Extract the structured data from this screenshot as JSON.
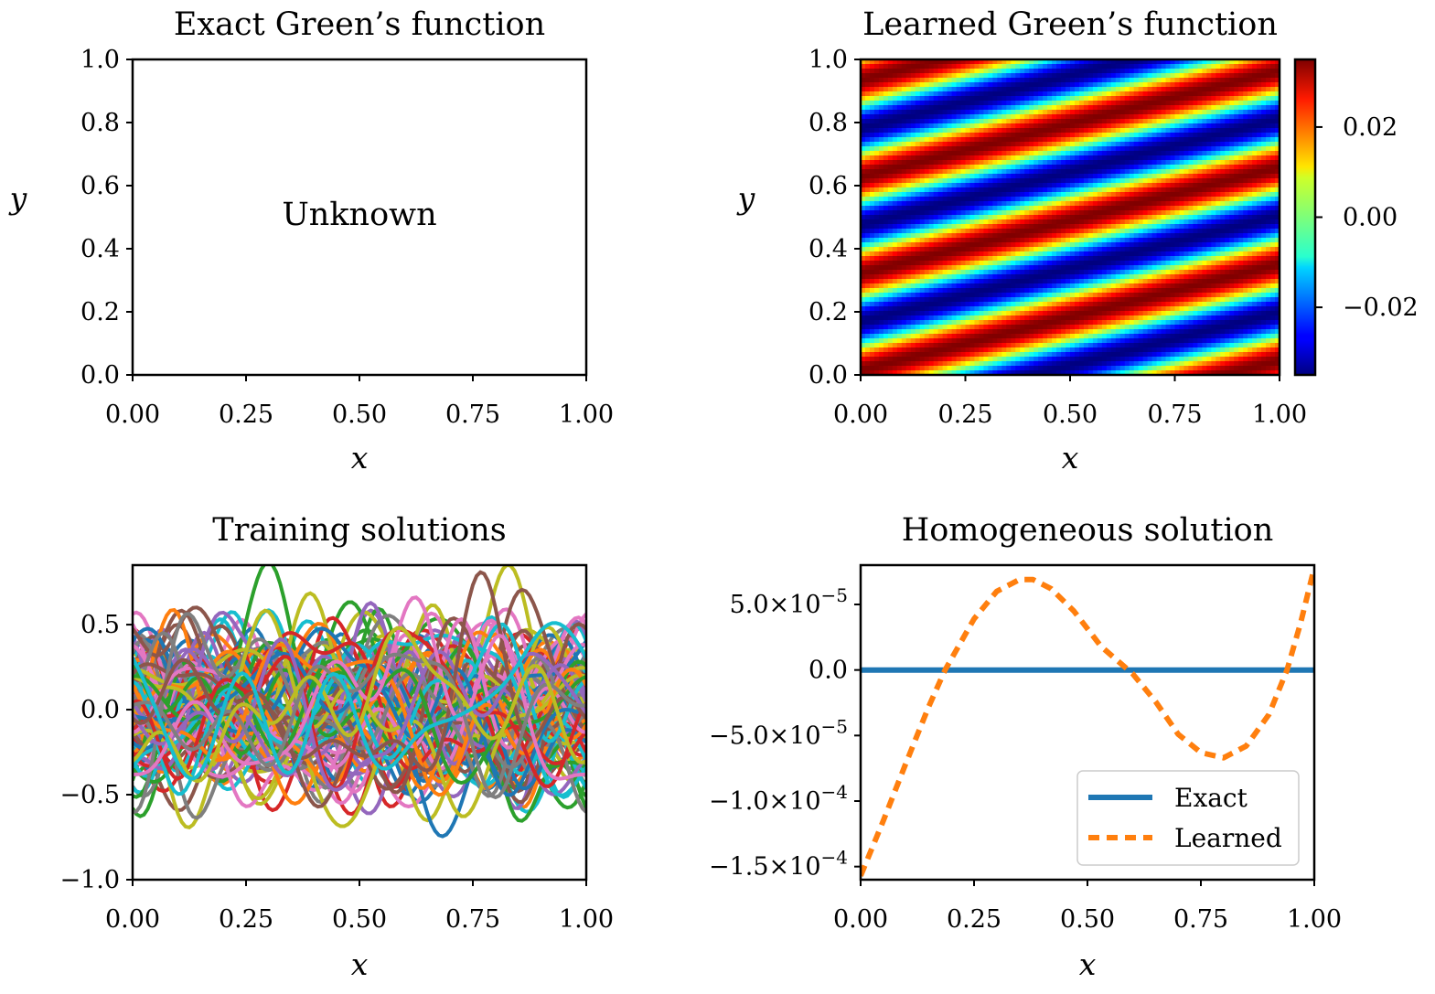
{
  "chart_data": [
    {
      "type": "table",
      "title": "Exact Green’s function",
      "xlabel": "x",
      "ylabel": "y",
      "xlim": [
        0,
        1
      ],
      "ylim": [
        0,
        1
      ],
      "x_ticks": [
        "0.00",
        "0.25",
        "0.50",
        "0.75",
        "1.00"
      ],
      "y_ticks": [
        "0.0",
        "0.2",
        "0.4",
        "0.6",
        "0.8",
        "1.0"
      ],
      "annotation": "Unknown"
    },
    {
      "type": "heatmap",
      "title": "Learned Green’s function",
      "xlabel": "x",
      "ylabel": "y",
      "xlim": [
        0,
        1
      ],
      "ylim": [
        0,
        1
      ],
      "x_ticks": [
        "0.00",
        "0.25",
        "0.50",
        "0.75",
        "1.00"
      ],
      "y_ticks": [
        "0.0",
        "0.2",
        "0.4",
        "0.6",
        "0.8",
        "1.0"
      ],
      "colormap": "jet",
      "value_range": [
        -0.035,
        0.035
      ],
      "colorbar_ticks": [
        0.02,
        0.0,
        -0.02
      ],
      "colorbar_tick_labels": [
        "0.02",
        "0.00",
        "−0.02"
      ],
      "field": {
        "amplitude": 0.035,
        "phase_x": 6.9,
        "phase_y": 20.5,
        "description_expr": "A*cos(phase_x*x - phase_y*y + 0.3)"
      }
    },
    {
      "type": "line",
      "title": "Training solutions",
      "xlabel": "x",
      "ylabel": "",
      "xlim": [
        0,
        1
      ],
      "ylim": [
        -1.0,
        0.85
      ],
      "x_ticks": [
        "0.00",
        "0.25",
        "0.50",
        "0.75",
        "1.00"
      ],
      "y_ticks": [
        0.5,
        0.0,
        -0.5,
        -1.0
      ],
      "y_tick_labels": [
        "0.5",
        "0.0",
        "−0.5",
        "−1.0"
      ],
      "series_count": 100,
      "palette": [
        "#1f77b4",
        "#ff7f0e",
        "#2ca02c",
        "#d62728",
        "#9467bd",
        "#8c564b",
        "#e377c2",
        "#7f7f7f",
        "#bcbd22",
        "#17becf"
      ]
    },
    {
      "type": "line",
      "title": "Homogeneous solution",
      "xlabel": "x",
      "ylabel": "",
      "xlim": [
        0,
        1
      ],
      "ylim": [
        -0.00016,
        8e-05
      ],
      "x_ticks": [
        "0.00",
        "0.25",
        "0.50",
        "0.75",
        "1.00"
      ],
      "y_ticks": [
        5e-05,
        0.0,
        -5e-05,
        -0.0001,
        -0.00015
      ],
      "y_tick_labels": [
        {
          "mant": "5.0×10",
          "exp": "−5"
        },
        {
          "mant": "0.0",
          "exp": ""
        },
        {
          "mant": "−5.0×10",
          "exp": "−5"
        },
        {
          "mant": "−1.0×10",
          "exp": "−4"
        },
        {
          "mant": "−1.5×10",
          "exp": "−4"
        }
      ],
      "legend_position": "lower-right",
      "series": [
        {
          "name": "Exact",
          "color": "#1f77b4",
          "style": "solid",
          "x": [
            0,
            1
          ],
          "y": [
            0,
            0
          ]
        },
        {
          "name": "Learned",
          "color": "#ff7f0e",
          "style": "dashed",
          "x": [
            0.0,
            0.05,
            0.1,
            0.15,
            0.186,
            0.25,
            0.3,
            0.35,
            0.38,
            0.42,
            0.47,
            0.53,
            0.6,
            0.65,
            0.7,
            0.75,
            0.8,
            0.85,
            0.9,
            0.94,
            0.97,
            1.0
          ],
          "y": [
            -0.000157,
            -0.000115,
            -7.1e-05,
            -2.8e-05,
            0.0,
            3.9e-05,
            6e-05,
            6.9e-05,
            6.9e-05,
            6.2e-05,
            4.5e-05,
            1.8e-05,
            -3e-06,
            -2.4e-05,
            -4.9e-05,
            -6.3e-05,
            -6.7e-05,
            -5.8e-05,
            -3.4e-05,
            0.0,
            3.6e-05,
            7.8e-05
          ]
        }
      ]
    }
  ]
}
